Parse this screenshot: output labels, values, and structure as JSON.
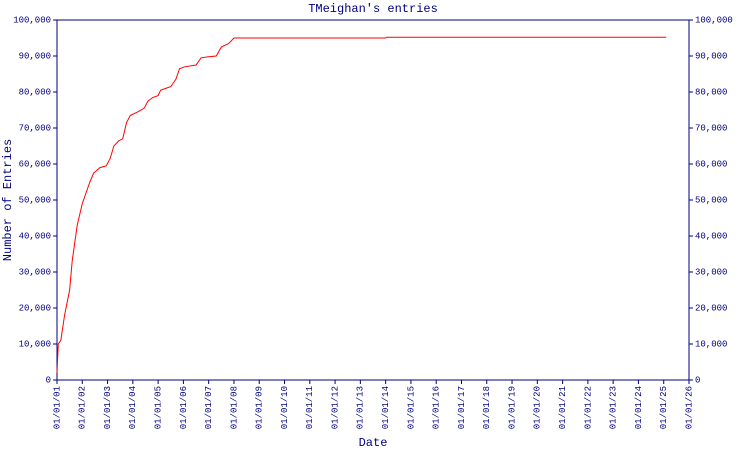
{
  "chart_data": {
    "type": "line",
    "title": "TMeighan's entries",
    "x_label": "Date",
    "y_label": "Number of Entries",
    "xlim": [
      2001,
      2026
    ],
    "xticks": [
      {
        "value": 2001,
        "label": "01/01/01"
      },
      {
        "value": 2002,
        "label": "01/01/02"
      },
      {
        "value": 2003,
        "label": "01/01/03"
      },
      {
        "value": 2004,
        "label": "01/01/04"
      },
      {
        "value": 2005,
        "label": "01/01/05"
      },
      {
        "value": 2006,
        "label": "01/01/06"
      },
      {
        "value": 2007,
        "label": "01/01/07"
      },
      {
        "value": 2008,
        "label": "01/01/08"
      },
      {
        "value": 2009,
        "label": "01/01/09"
      },
      {
        "value": 2010,
        "label": "01/01/10"
      },
      {
        "value": 2011,
        "label": "01/01/11"
      },
      {
        "value": 2012,
        "label": "01/01/12"
      },
      {
        "value": 2013,
        "label": "01/01/13"
      },
      {
        "value": 2014,
        "label": "01/01/14"
      },
      {
        "value": 2015,
        "label": "01/01/15"
      },
      {
        "value": 2016,
        "label": "01/01/16"
      },
      {
        "value": 2017,
        "label": "01/01/17"
      },
      {
        "value": 2018,
        "label": "01/01/18"
      },
      {
        "value": 2019,
        "label": "01/01/19"
      },
      {
        "value": 2020,
        "label": "01/01/20"
      },
      {
        "value": 2021,
        "label": "01/01/21"
      },
      {
        "value": 2022,
        "label": "01/01/22"
      },
      {
        "value": 2023,
        "label": "01/01/23"
      },
      {
        "value": 2024,
        "label": "01/01/24"
      },
      {
        "value": 2025,
        "label": "01/01/25"
      },
      {
        "value": 2026,
        "label": "01/01/26"
      }
    ],
    "ylim": [
      0,
      100000
    ],
    "yticks": [
      0,
      {
        "value": 10000,
        "label": "10,000"
      },
      {
        "value": 20000,
        "label": "20,000"
      },
      {
        "value": 30000,
        "label": "30,000"
      },
      {
        "value": 40000,
        "label": "40,000"
      },
      {
        "value": 50000,
        "label": "50,000"
      },
      {
        "value": 60000,
        "label": "60,000"
      },
      {
        "value": 70000,
        "label": "70,000"
      },
      {
        "value": 80000,
        "label": "80,000"
      },
      {
        "value": 90000,
        "label": "90,000"
      },
      {
        "value": 100000,
        "label": "100,000"
      }
    ],
    "axis_color": "#000080",
    "series": [
      {
        "color": "#ff0000",
        "x": [
          2001.0,
          2001.05,
          2001.15,
          2001.3,
          2001.5,
          2001.6,
          2001.8,
          2002.0,
          2002.3,
          2002.45,
          2002.7,
          2002.95,
          2003.1,
          2003.25,
          2003.45,
          2003.6,
          2003.75,
          2003.9,
          2004.2,
          2004.45,
          2004.6,
          2004.8,
          2005.0,
          2005.1,
          2005.3,
          2005.5,
          2005.7,
          2005.85,
          2006.05,
          2006.5,
          2006.7,
          2007.0,
          2007.3,
          2007.5,
          2007.8,
          2008.0,
          2014.0,
          2014.05,
          2025.1
        ],
        "values": [
          2000,
          10000,
          11000,
          18000,
          25000,
          33000,
          43000,
          49000,
          55000,
          57500,
          59000,
          59500,
          61500,
          65000,
          66500,
          67000,
          71500,
          73500,
          74500,
          75500,
          77500,
          78500,
          79000,
          80500,
          81000,
          81500,
          83500,
          86500,
          87000,
          87500,
          89500,
          89800,
          90000,
          92500,
          93500,
          95000,
          95000,
          95200,
          95200
        ]
      }
    ]
  }
}
